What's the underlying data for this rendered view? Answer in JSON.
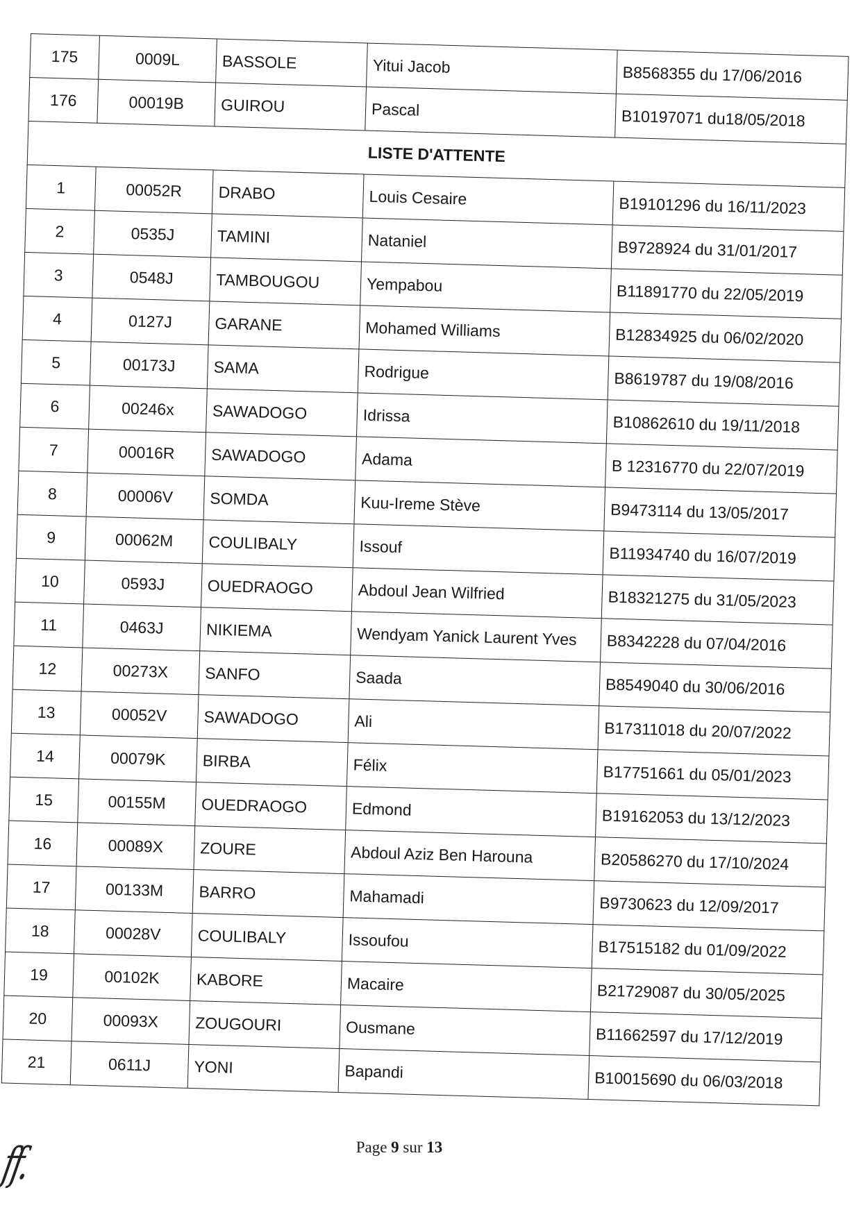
{
  "rows_top": [
    {
      "no": "175",
      "code": "0009L",
      "nom": "BASSOLE",
      "prenoms": "Yitui Jacob",
      "piece": "B8568355 du 17/06/2016"
    },
    {
      "no": "176",
      "code": "00019B",
      "nom": "GUIROU",
      "prenoms": "Pascal",
      "piece": "B10197071 du18/05/2018"
    }
  ],
  "section_heading": "LISTE D'ATTENTE",
  "rows_attente": [
    {
      "no": "1",
      "code": "00052R",
      "nom": "DRABO",
      "prenoms": "Louis Cesaire",
      "piece": "B19101296 du 16/11/2023"
    },
    {
      "no": "2",
      "code": "0535J",
      "nom": "TAMINI",
      "prenoms": "Nataniel",
      "piece": "B9728924 du 31/01/2017"
    },
    {
      "no": "3",
      "code": "0548J",
      "nom": "TAMBOUGOU",
      "prenoms": "Yempabou",
      "piece": "B11891770 du 22/05/2019"
    },
    {
      "no": "4",
      "code": "0127J",
      "nom": "GARANE",
      "prenoms": "Mohamed Williams",
      "piece": "B12834925 du 06/02/2020"
    },
    {
      "no": "5",
      "code": "00173J",
      "nom": "SAMA",
      "prenoms": "Rodrigue",
      "piece": "B8619787 du 19/08/2016"
    },
    {
      "no": "6",
      "code": "00246x",
      "nom": "SAWADOGO",
      "prenoms": "Idrissa",
      "piece": "B10862610 du 19/11/2018"
    },
    {
      "no": "7",
      "code": "00016R",
      "nom": "SAWADOGO",
      "prenoms": "Adama",
      "piece": "B 12316770 du 22/07/2019"
    },
    {
      "no": "8",
      "code": "00006V",
      "nom": "SOMDA",
      "prenoms": "Kuu-Ireme Stève",
      "piece": "B9473114 du 13/05/2017"
    },
    {
      "no": "9",
      "code": "00062M",
      "nom": "COULIBALY",
      "prenoms": "Issouf",
      "piece": "B11934740 du 16/07/2019"
    },
    {
      "no": "10",
      "code": "0593J",
      "nom": "OUEDRAOGO",
      "prenoms": "Abdoul Jean Wilfried",
      "piece": "B18321275 du 31/05/2023"
    },
    {
      "no": "11",
      "code": "0463J",
      "nom": "NIKIEMA",
      "prenoms": "Wendyam Yanick Laurent Yves",
      "piece": "B8342228 du 07/04/2016"
    },
    {
      "no": "12",
      "code": "00273X",
      "nom": "SANFO",
      "prenoms": "Saada",
      "piece": "B8549040 du 30/06/2016"
    },
    {
      "no": "13",
      "code": "00052V",
      "nom": "SAWADOGO",
      "prenoms": "Ali",
      "piece": "B17311018 du 20/07/2022"
    },
    {
      "no": "14",
      "code": "00079K",
      "nom": "BIRBA",
      "prenoms": "Félix",
      "piece": "B17751661 du 05/01/2023"
    },
    {
      "no": "15",
      "code": "00155M",
      "nom": "OUEDRAOGO",
      "prenoms": "Edmond",
      "piece": "B19162053 du 13/12/2023"
    },
    {
      "no": "16",
      "code": "00089X",
      "nom": "ZOURE",
      "prenoms": "Abdoul Aziz Ben Harouna",
      "piece": "B20586270 du 17/10/2024"
    },
    {
      "no": "17",
      "code": "00133M",
      "nom": "BARRO",
      "prenoms": "Mahamadi",
      "piece": "B9730623 du 12/09/2017"
    },
    {
      "no": "18",
      "code": "00028V",
      "nom": "COULIBALY",
      "prenoms": "Issoufou",
      "piece": "B17515182 du 01/09/2022"
    },
    {
      "no": "19",
      "code": "00102K",
      "nom": "KABORE",
      "prenoms": "Macaire",
      "piece": "B21729087 du 30/05/2025"
    },
    {
      "no": "20",
      "code": "00093X",
      "nom": "ZOUGOURI",
      "prenoms": "Ousmane",
      "piece": "B11662597 du 17/12/2019"
    },
    {
      "no": "21",
      "code": "0611J",
      "nom": "YONI",
      "prenoms": "Bapandi",
      "piece": "B10015690 du 06/03/2018"
    }
  ],
  "footer": {
    "page_label": "Page",
    "page_number": "9",
    "of_label": "sur",
    "total_pages": "13"
  },
  "signature": {
    "text": "ff."
  }
}
